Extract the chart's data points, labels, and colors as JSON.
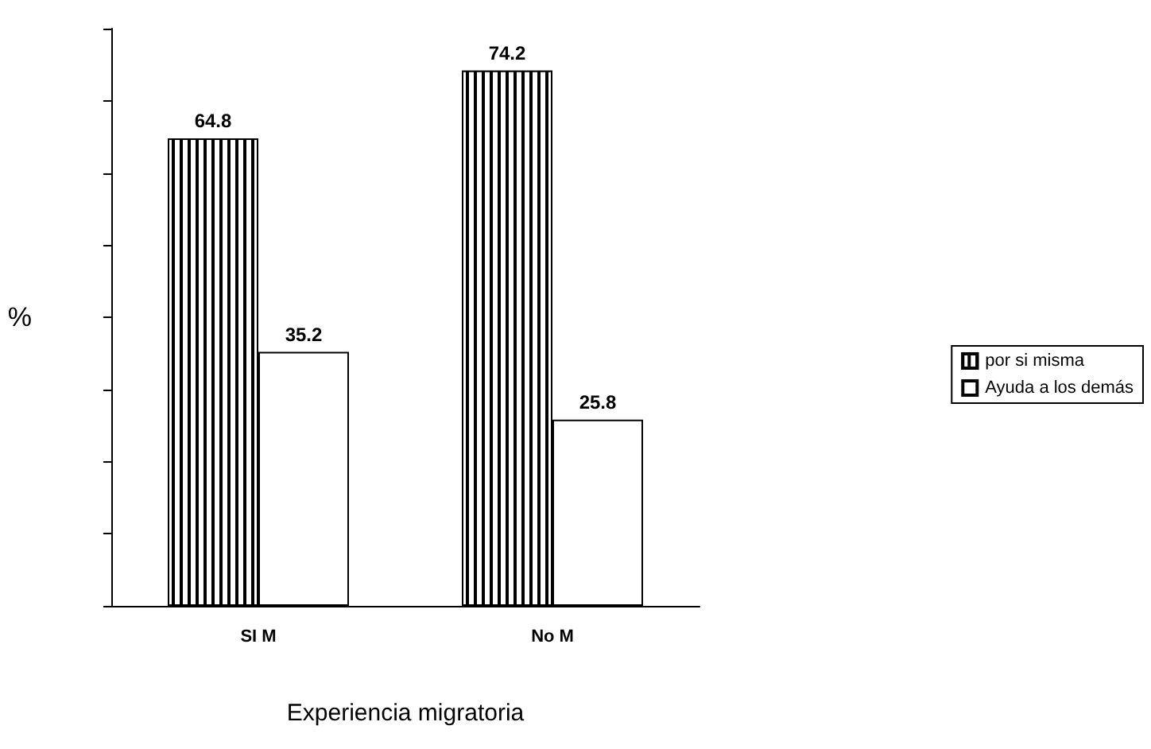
{
  "chart_data": {
    "type": "bar",
    "xlabel": "Experiencia migratoria",
    "ylabel": "%",
    "categories": [
      "SI M",
      "No M"
    ],
    "series": [
      {
        "name": "por si misma",
        "color": "#000000",
        "values": [
          64.8,
          74.2
        ]
      },
      {
        "name": "Ayuda a los demás",
        "color": "#ffffff",
        "values": [
          35.2,
          25.8
        ]
      }
    ],
    "ylim": [
      0,
      80
    ],
    "yticks": [
      {
        "value": 0,
        "label": null
      },
      {
        "value": 10,
        "label": null
      },
      {
        "value": 20,
        "label": null
      },
      {
        "value": 30,
        "label": null
      },
      {
        "value": 40,
        "label": null
      },
      {
        "value": 50,
        "label": null
      },
      {
        "value": 60,
        "label": null
      },
      {
        "value": 70,
        "label": null
      },
      {
        "value": 80,
        "label": null
      }
    ],
    "data_labels": true,
    "grid": false,
    "legend": "right",
    "tick_labels": "x"
  }
}
